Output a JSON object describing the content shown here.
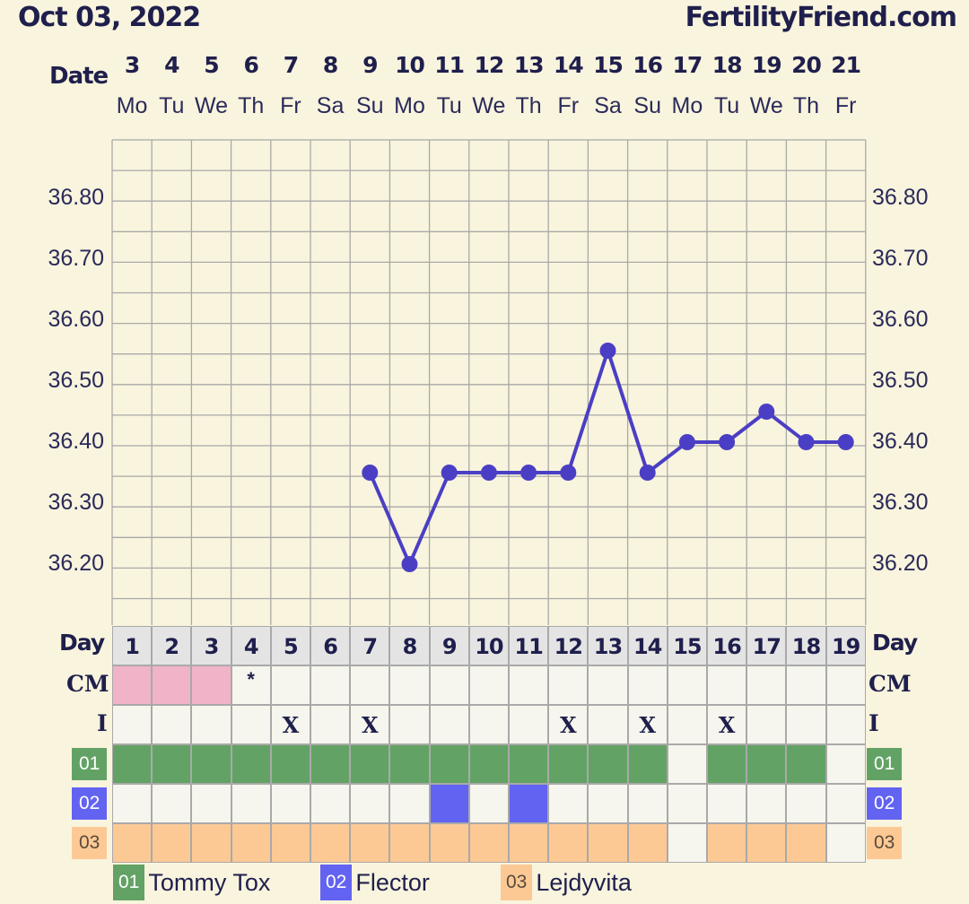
{
  "header": {
    "date": "Oct 03, 2022",
    "site": "FertilityFriend.com"
  },
  "labels": {
    "date": "Date",
    "day": "Day",
    "cm": "CM",
    "i": "I"
  },
  "colors": {
    "background": "#f9f4dd",
    "line": "#4a3fc4",
    "grid_line": "#a9a9a9",
    "cell_bg": "#f6f6ee",
    "period": "#f0b3c8",
    "med1": "#63a265",
    "med2": "#6363f2",
    "med3": "#fcc995",
    "text": "#1f1f4d"
  },
  "chart_data": {
    "type": "line",
    "dates": [
      "3",
      "4",
      "5",
      "6",
      "7",
      "8",
      "9",
      "10",
      "11",
      "12",
      "13",
      "14",
      "15",
      "16",
      "17",
      "18",
      "19",
      "20",
      "21"
    ],
    "weekdays": [
      "Mo",
      "Tu",
      "We",
      "Th",
      "Fr",
      "Sa",
      "Su",
      "Mo",
      "Tu",
      "We",
      "Th",
      "Fr",
      "Sa",
      "Su",
      "Mo",
      "Tu",
      "We",
      "Th",
      "Fr"
    ],
    "cycle_days": [
      "1",
      "2",
      "3",
      "4",
      "5",
      "6",
      "7",
      "8",
      "9",
      "10",
      "11",
      "12",
      "13",
      "14",
      "15",
      "16",
      "17",
      "18",
      "19"
    ],
    "temperatures": [
      null,
      null,
      null,
      null,
      null,
      null,
      36.35,
      36.2,
      36.35,
      36.35,
      36.35,
      36.35,
      36.55,
      36.35,
      36.4,
      36.4,
      36.45,
      36.4,
      36.4
    ],
    "y_ticks": [
      "36.80",
      "36.70",
      "36.60",
      "36.50",
      "36.40",
      "36.30",
      "36.20"
    ],
    "ylim": [
      36.1,
      36.9
    ],
    "grid": true
  },
  "cm_row": {
    "period_days": [
      1,
      2,
      3
    ],
    "marks": {
      "4": "*"
    }
  },
  "i_row": {
    "marks": {
      "5": "X",
      "7": "X",
      "12": "X",
      "14": "X",
      "16": "X"
    }
  },
  "med_rows": [
    {
      "code": "01",
      "name": "Tommy Tox",
      "color": "#63a265",
      "days": [
        1,
        2,
        3,
        4,
        5,
        6,
        7,
        8,
        9,
        10,
        11,
        12,
        13,
        14,
        16,
        17,
        18
      ]
    },
    {
      "code": "02",
      "name": "Flector",
      "color": "#6363f2",
      "days": [
        9,
        11
      ]
    },
    {
      "code": "03",
      "name": "Lejdyvita",
      "color": "#fcc995",
      "days": [
        1,
        2,
        3,
        4,
        5,
        6,
        7,
        8,
        9,
        10,
        11,
        12,
        13,
        14,
        16,
        17,
        18
      ]
    }
  ]
}
